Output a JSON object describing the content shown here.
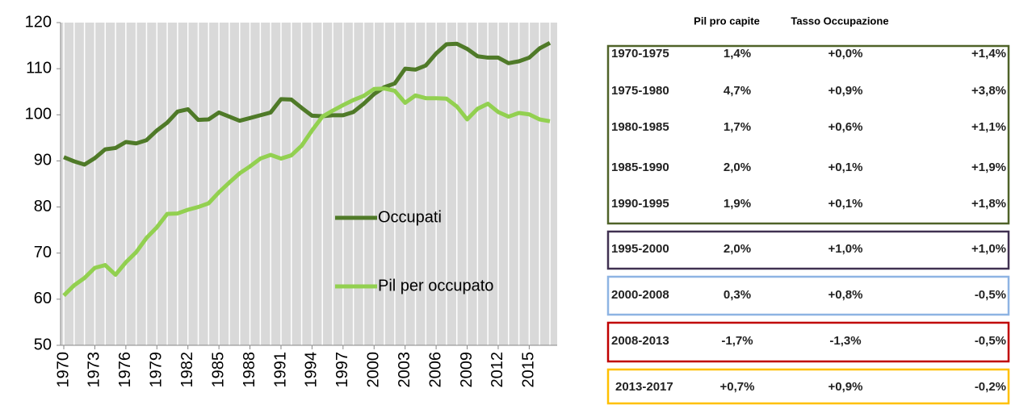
{
  "chart_data": {
    "type": "line",
    "x": [
      1970,
      1971,
      1972,
      1973,
      1974,
      1975,
      1976,
      1977,
      1978,
      1979,
      1980,
      1981,
      1982,
      1983,
      1984,
      1985,
      1986,
      1987,
      1988,
      1989,
      1990,
      1991,
      1992,
      1993,
      1994,
      1995,
      1996,
      1997,
      1998,
      1999,
      2000,
      2001,
      2002,
      2003,
      2004,
      2005,
      2006,
      2007,
      2008,
      2009,
      2010,
      2011,
      2012,
      2013,
      2014,
      2015,
      2016,
      2017
    ],
    "series": [
      {
        "name": "Occupati",
        "color": "#4f7a28",
        "values": [
          90.8,
          89.9,
          89.2,
          90.6,
          92.5,
          92.8,
          94.1,
          93.8,
          94.5,
          96.6,
          98.3,
          100.7,
          101.2,
          98.9,
          99.0,
          100.5,
          99.6,
          98.7,
          99.3,
          99.9,
          100.5,
          103.4,
          103.3,
          101.5,
          99.8,
          99.7,
          99.9,
          99.9,
          100.6,
          102.4,
          104.5,
          106.0,
          106.8,
          110.0,
          109.8,
          110.7,
          113.3,
          115.3,
          115.4,
          114.3,
          112.7,
          112.4,
          112.4,
          111.2,
          111.6,
          112.4,
          114.4,
          115.6
        ]
      },
      {
        "name": "Pil per occupato",
        "color": "#92d050",
        "values": [
          60.8,
          63.0,
          64.6,
          66.8,
          67.4,
          65.3,
          68.0,
          70.2,
          73.3,
          75.6,
          78.5,
          78.6,
          79.4,
          80.0,
          80.8,
          83.2,
          85.3,
          87.3,
          88.8,
          90.5,
          91.3,
          90.5,
          91.2,
          93.3,
          96.6,
          99.6,
          100.9,
          102.1,
          103.2,
          104.1,
          105.6,
          105.7,
          105.2,
          102.6,
          104.2,
          103.6,
          103.6,
          103.5,
          101.8,
          99.0,
          101.3,
          102.4,
          100.6,
          99.6,
          100.4,
          100.1,
          99.0,
          98.6
        ]
      }
    ],
    "xlim": [
      1970,
      2017
    ],
    "xticks": [
      1970,
      1973,
      1976,
      1979,
      1982,
      1985,
      1988,
      1991,
      1994,
      1997,
      2000,
      2003,
      2006,
      2009,
      2012,
      2015
    ],
    "ylim": [
      50,
      120
    ],
    "yticks": [
      50,
      60,
      70,
      80,
      90,
      100,
      110,
      120
    ],
    "grid": true
  },
  "table": {
    "headers": [
      "Pil pro capite",
      "Tasso Occupazione"
    ],
    "groups": [
      {
        "color": "#4f6228",
        "rows": [
          [
            "1970-1975",
            "1,4%",
            "+0,0%",
            "+1,4%"
          ],
          [
            "1975-1980",
            "4,7%",
            "+0,9%",
            "+3,8%"
          ],
          [
            "1980-1985",
            "1,7%",
            "+0,6%",
            "+1,1%"
          ],
          [
            "1985-1990",
            "2,0%",
            "+0,1%",
            "+1,9%"
          ],
          [
            "1990-1995",
            "1,9%",
            "+0,1%",
            "+1,8%"
          ]
        ]
      },
      {
        "color": "#403151",
        "rows": [
          [
            "1995-2000",
            "2,0%",
            "+1,0%",
            "+1,0%"
          ]
        ]
      },
      {
        "color": "#8eb4e3",
        "rows": [
          [
            "2000-2008",
            "0,3%",
            "+0,8%",
            "-0,5%"
          ]
        ]
      },
      {
        "color": "#c00000",
        "rows": [
          [
            "2008-2013",
            "-1,7%",
            "-1,3%",
            "-0,5%"
          ]
        ]
      },
      {
        "color": "#ffc000",
        "rows": [
          [
            "2013-2017",
            "+0,7%",
            "+0,9%",
            "-0,2%"
          ]
        ]
      }
    ]
  }
}
